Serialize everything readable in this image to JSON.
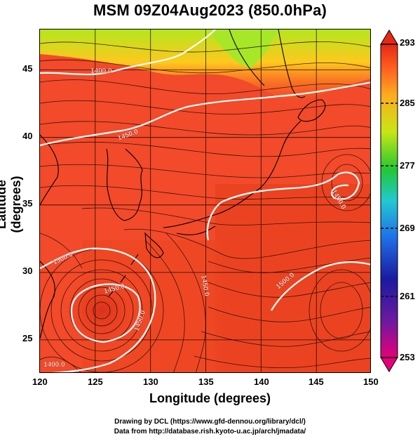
{
  "title": "MSM 09Z04Aug2023 (850.0hPa)",
  "axes": {
    "xlabel": "Longitude (degrees)",
    "ylabel": "Latitude  (degrees)",
    "xticks": [
      "120",
      "125",
      "130",
      "135",
      "140",
      "145",
      "150"
    ],
    "yticks": [
      "45",
      "40",
      "35",
      "30",
      "25"
    ],
    "xrange": [
      120,
      150
    ],
    "yrange": [
      22.5,
      48
    ]
  },
  "colorbar": {
    "ticks": [
      "293",
      "285",
      "277",
      "269",
      "261",
      "253"
    ],
    "range": [
      253,
      293
    ],
    "colors": [
      "#e6007a",
      "#1a1aa0",
      "#1e6ee6",
      "#23c8d2",
      "#22c832",
      "#c8e614",
      "#ffaa1e",
      "#ff5a1e",
      "#e62814"
    ]
  },
  "contours": {
    "labels": [
      "1400.0",
      "1450.0",
      "1450.0",
      "1450.0",
      "1450.0",
      "1500.0",
      "1500.0",
      "1450.0",
      "1400.0"
    ]
  },
  "credits": {
    "line1": "Drawing by DCL (https://www.gfd-dennou.org/library/dcl/)",
    "line2": "Data from http://database.rish.kyoto-u.ac.jp/arch/jmadata/"
  }
}
